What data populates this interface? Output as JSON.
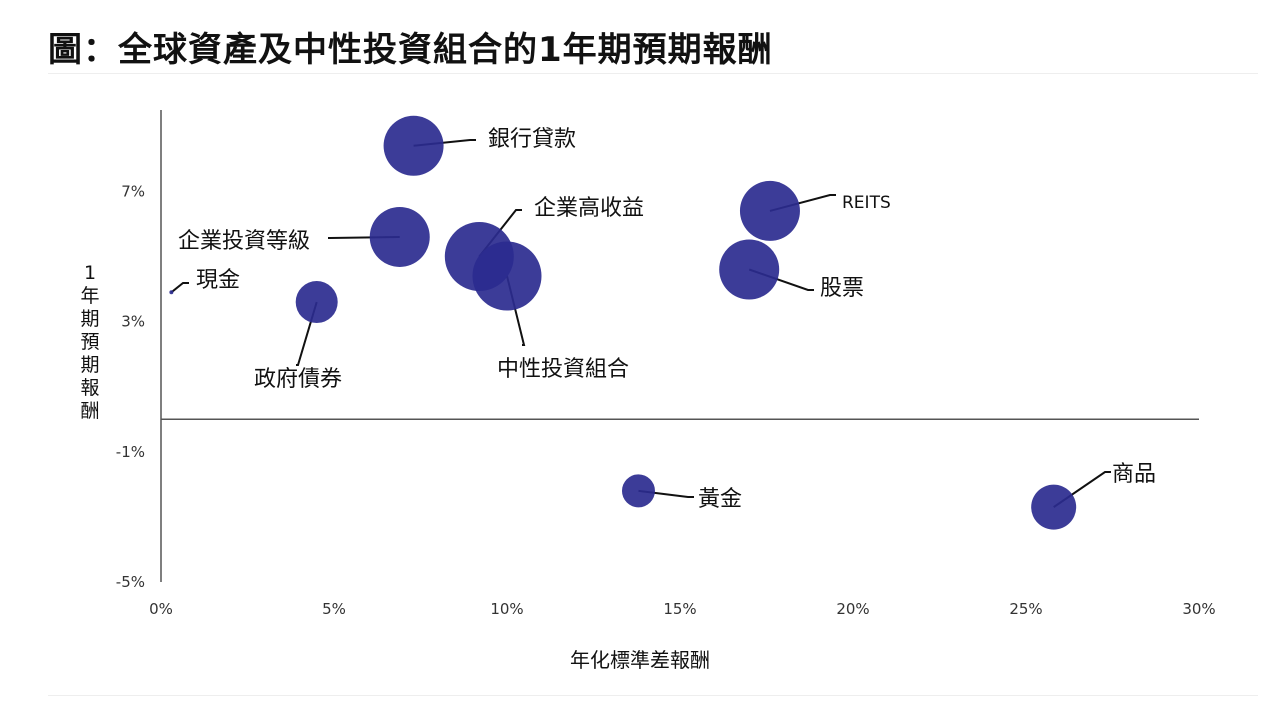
{
  "title": "圖：全球資產及中性投資組合的1年期預期報酬",
  "colors": {
    "bubble": "#2b2b8f",
    "axis": "#555555",
    "leader": "#111111"
  },
  "chart_data": {
    "type": "scatter",
    "title": "圖：全球資產及中性投資組合的1年期預期報酬",
    "xlabel": "年化標準差報酬",
    "ylabel": "1年期預期報酬",
    "xlim": [
      0,
      30
    ],
    "ylim": [
      -5,
      9.5
    ],
    "x_ticks": [
      "0%",
      "5%",
      "10%",
      "15%",
      "20%",
      "25%",
      "30%"
    ],
    "y_ticks": [
      "-5%",
      "-1%",
      "3%",
      "7%"
    ],
    "grid": false,
    "legend": "none",
    "points": [
      {
        "label": "銀行貸款",
        "x": 7.3,
        "y": 8.4,
        "size": 1.0
      },
      {
        "label": "企業高收益",
        "x": 9.2,
        "y": 5.0,
        "size": 1.15
      },
      {
        "label": "中性投資組合",
        "x": 10.0,
        "y": 4.4,
        "size": 1.15
      },
      {
        "label": "企業投資等級",
        "x": 6.9,
        "y": 5.6,
        "size": 1.0
      },
      {
        "label": "現金",
        "x": 0.3,
        "y": 3.9,
        "size": 0.05
      },
      {
        "label": "政府債券",
        "x": 4.5,
        "y": 3.6,
        "size": 0.7
      },
      {
        "label": "REITS",
        "x": 17.6,
        "y": 6.4,
        "size": 1.0
      },
      {
        "label": "股票",
        "x": 17.0,
        "y": 4.6,
        "size": 1.0
      },
      {
        "label": "黃金",
        "x": 13.8,
        "y": -2.2,
        "size": 0.55
      },
      {
        "label": "商品",
        "x": 25.8,
        "y": -2.7,
        "size": 0.75
      }
    ]
  }
}
